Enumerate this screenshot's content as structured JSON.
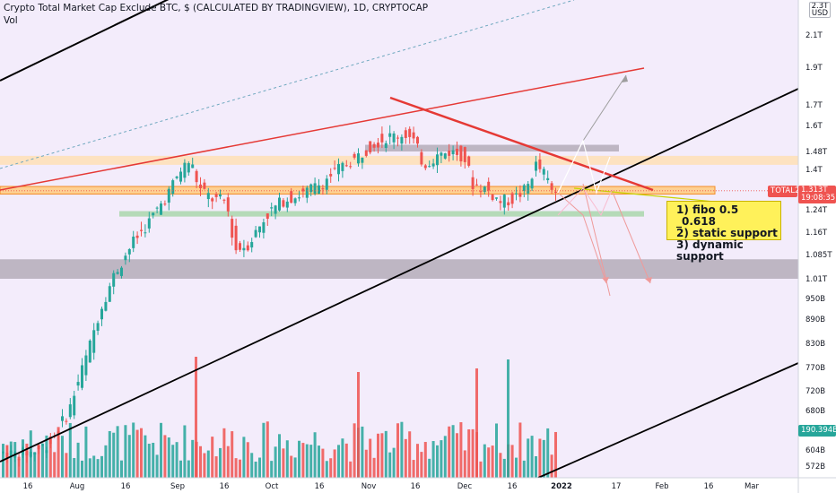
{
  "header": {
    "title": "Crypto Total Market Cap Exclude BTC, $ (CALCULATED BY TRADINGVIEW), 1D, CRYPTOCAP",
    "vol": "Vol"
  },
  "price_axis": {
    "currency": "USD",
    "top_partial_label": "2.3T",
    "labels": [
      "2.1T",
      "1.9T",
      "1.7T",
      "1.6T",
      "1.48T",
      "1.4T",
      "1.24T",
      "1.16T",
      "1.085T",
      "1.01T",
      "950B",
      "890B",
      "830B",
      "770B",
      "720B",
      "680B",
      "604B",
      "572B"
    ]
  },
  "time_axis": {
    "labels": [
      "16",
      "Aug",
      "16",
      "Sep",
      "16",
      "Oct",
      "16",
      "Nov",
      "16",
      "Dec",
      "16",
      "2022",
      "17",
      "Feb",
      "16",
      "Mar"
    ]
  },
  "badges": {
    "symbol": "TOTAL2",
    "price": "1.313T",
    "countdown": "19:08:35",
    "volume": "190.394B"
  },
  "annotation": {
    "lines": [
      "1) fibo 0.5 _0.618",
      "2) static support",
      "3) dynamic support"
    ]
  },
  "colors": {
    "up": "#26a69a",
    "down": "#ef5350",
    "background_tint": "#f3ecfb",
    "support_zone": "#ffe0b2",
    "fib_zone": "#ffcc80",
    "green_zone": "#a5d6a7",
    "grey_zone": "#b0a9b5",
    "trendline": "#e53935"
  },
  "chart_data": {
    "type": "candlestick",
    "title": "Crypto Total Market Cap Exclude BTC, $ (CALCULATED BY TRADINGVIEW), 1D, CRYPTOCAP",
    "y_scale": "log",
    "y_range": [
      0.56,
      2.3
    ],
    "y_unit": "T USD",
    "last_price": 1.313,
    "last_volume": 190.394,
    "volume_unit": "B USD",
    "zones": [
      {
        "name": "resistance band",
        "low": 1.42,
        "high": 1.46
      },
      {
        "name": "fibo 0.5-0.618 band",
        "low": 1.3,
        "high": 1.33
      },
      {
        "name": "static support band",
        "low": 1.215,
        "high": 1.235
      },
      {
        "name": "lower support band",
        "low": 1.01,
        "high": 1.07
      },
      {
        "name": "upper grey band",
        "low": 1.48,
        "high": 1.51
      }
    ],
    "x_axis": [
      "16",
      "Aug",
      "16",
      "Sep",
      "16",
      "Oct",
      "16",
      "Nov",
      "16",
      "Dec",
      "16",
      "2022",
      "17",
      "Feb",
      "16",
      "Mar"
    ]
  }
}
